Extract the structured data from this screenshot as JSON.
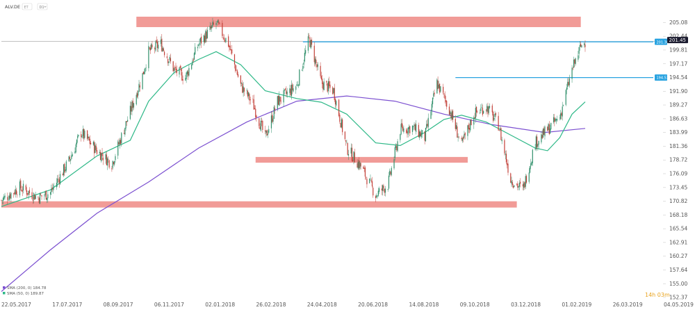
{
  "toolbar": {
    "symbol": "ALV.DE",
    "buttons": [
      "ET",
      "D1"
    ]
  },
  "timer": "14h 03m",
  "colors": {
    "up": "#2f8f6a",
    "down": "#c23e36",
    "zone": "#f0908c",
    "sma200": "#7b4fd0",
    "sma50": "#2db887",
    "level": "#29a3e0",
    "current": "#1a1a2e",
    "axis_text": "#555555"
  },
  "chart_data": {
    "type": "candlestick",
    "xlabels": [
      "22.05.2017",
      "17.07.2017",
      "08.09.2017",
      "06.11.2017",
      "02.01.2018",
      "26.02.2018",
      "24.04.2018",
      "20.06.2018",
      "14.08.2018",
      "09.10.2018",
      "03.12.2018",
      "01.02.2019",
      "26.03.2019",
      "04.05.2019"
    ],
    "yticks": [
      205.08,
      202.44,
      199.81,
      197.17,
      194.54,
      191.9,
      189.27,
      186.63,
      183.99,
      181.36,
      178.72,
      176.09,
      173.45,
      170.82,
      168.18,
      165.54,
      162.91,
      160.27,
      157.64,
      155.0,
      152.37
    ],
    "ylim": [
      152.37,
      207.0
    ],
    "current_price": 201.45,
    "price_labels": [
      {
        "name": "level-upper",
        "value": 201.38,
        "label": "201.38"
      },
      {
        "name": "level-mid",
        "value": 194.53,
        "label": "194.53"
      },
      {
        "name": "current",
        "value": 201.45,
        "label": "201.45"
      }
    ],
    "zones": [
      {
        "name": "resistance-zone",
        "from": "2017-10-23",
        "to": "2019-03-14",
        "low": 204.2,
        "high": 206.2
      },
      {
        "name": "mid-support-zone",
        "from": "2018-03-08",
        "to": "2018-11-05",
        "low": 178.2,
        "high": 179.3
      },
      {
        "name": "long-term-support-zone",
        "from": "2017-05-22",
        "to": "2018-12-31",
        "low": 169.6,
        "high": 170.8
      }
    ],
    "levels": [
      {
        "name": "upper-level-line",
        "from": "2018-05-01",
        "value": 201.38
      },
      {
        "name": "mid-level-line",
        "from": "2018-10-22",
        "value": 194.53
      }
    ],
    "legend": [
      {
        "label": "SMA (200, 0) 184.78",
        "color": "#7b4fd0"
      },
      {
        "label": "SMA (50, 0) 189.87",
        "color": "#2db887"
      }
    ],
    "close_path": [
      [
        "2017-05-22",
        171.0
      ],
      [
        "2017-06-12",
        173.5
      ],
      [
        "2017-07-03",
        171.5
      ],
      [
        "2017-07-17",
        172.5
      ],
      [
        "2017-08-07",
        178.5
      ],
      [
        "2017-08-21",
        184.0
      ],
      [
        "2017-09-08",
        180.5
      ],
      [
        "2017-09-25",
        178.0
      ],
      [
        "2017-10-16",
        188.0
      ],
      [
        "2017-10-30",
        195.0
      ],
      [
        "2017-11-06",
        199.5
      ],
      [
        "2017-11-20",
        201.0
      ],
      [
        "2017-12-05",
        196.0
      ],
      [
        "2017-12-18",
        194.5
      ],
      [
        "2018-01-02",
        201.0
      ],
      [
        "2018-01-22",
        205.0
      ],
      [
        "2018-02-05",
        201.0
      ],
      [
        "2018-02-19",
        193.0
      ],
      [
        "2018-03-05",
        189.5
      ],
      [
        "2018-03-19",
        183.0
      ],
      [
        "2018-04-02",
        190.0
      ],
      [
        "2018-04-24",
        193.0
      ],
      [
        "2018-05-08",
        202.0
      ],
      [
        "2018-05-22",
        193.5
      ],
      [
        "2018-06-05",
        192.0
      ],
      [
        "2018-06-20",
        181.0
      ],
      [
        "2018-07-06",
        177.5
      ],
      [
        "2018-07-23",
        172.0
      ],
      [
        "2018-08-06",
        174.0
      ],
      [
        "2018-08-20",
        184.5
      ],
      [
        "2018-09-03",
        185.0
      ],
      [
        "2018-09-17",
        183.0
      ],
      [
        "2018-10-01",
        193.5
      ],
      [
        "2018-10-15",
        188.5
      ],
      [
        "2018-10-29",
        181.5
      ],
      [
        "2018-11-12",
        187.5
      ],
      [
        "2018-11-26",
        189.0
      ],
      [
        "2018-12-10",
        185.5
      ],
      [
        "2018-12-24",
        175.0
      ],
      [
        "2019-01-07",
        173.0
      ],
      [
        "2019-01-21",
        182.0
      ],
      [
        "2019-02-04",
        184.5
      ],
      [
        "2019-02-18",
        187.0
      ],
      [
        "2019-03-04",
        196.0
      ],
      [
        "2019-03-14",
        200.5
      ],
      [
        "2019-03-19",
        201.45
      ]
    ],
    "sma200": [
      [
        "2017-05-22",
        153.5
      ],
      [
        "2017-07-17",
        161.5
      ],
      [
        "2017-09-08",
        168.5
      ],
      [
        "2017-11-06",
        174.5
      ],
      [
        "2018-01-02",
        181.0
      ],
      [
        "2018-02-26",
        186.0
      ],
      [
        "2018-04-24",
        190.0
      ],
      [
        "2018-06-20",
        191.0
      ],
      [
        "2018-08-14",
        190.0
      ],
      [
        "2018-10-09",
        187.5
      ],
      [
        "2018-12-03",
        185.5
      ],
      [
        "2019-02-01",
        184.0
      ],
      [
        "2019-03-19",
        184.78
      ]
    ],
    "sma50": [
      [
        "2017-05-22",
        169.8
      ],
      [
        "2017-07-17",
        173.0
      ],
      [
        "2017-09-08",
        179.5
      ],
      [
        "2017-10-16",
        182.5
      ],
      [
        "2017-11-06",
        190.0
      ],
      [
        "2017-12-05",
        195.5
      ],
      [
        "2018-01-02",
        198.0
      ],
      [
        "2018-01-22",
        199.5
      ],
      [
        "2018-02-19",
        197.0
      ],
      [
        "2018-03-19",
        192.0
      ],
      [
        "2018-04-24",
        190.5
      ],
      [
        "2018-05-22",
        189.8
      ],
      [
        "2018-06-20",
        187.5
      ],
      [
        "2018-07-23",
        182.0
      ],
      [
        "2018-08-20",
        181.5
      ],
      [
        "2018-09-17",
        184.0
      ],
      [
        "2018-10-09",
        186.5
      ],
      [
        "2018-10-29",
        187.3
      ],
      [
        "2018-11-26",
        186.0
      ],
      [
        "2018-12-24",
        183.5
      ],
      [
        "2019-01-21",
        181.0
      ],
      [
        "2019-02-04",
        180.5
      ],
      [
        "2019-02-18",
        183.0
      ],
      [
        "2019-03-04",
        187.5
      ],
      [
        "2019-03-19",
        189.87
      ]
    ]
  }
}
